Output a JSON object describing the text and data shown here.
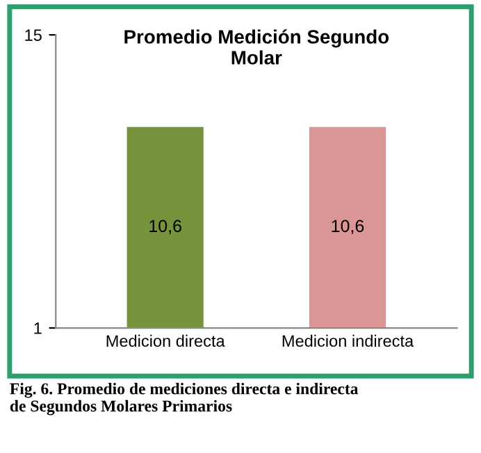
{
  "chart_data": {
    "type": "bar",
    "title": "Promedio Medición Segundo\nMolar",
    "categories": [
      "Medicion directa",
      "Medicion indirecta"
    ],
    "values": [
      10.6,
      10.6
    ],
    "colors": [
      "#77933c",
      "#d99694"
    ],
    "value_labels": [
      "10,6",
      "10,6"
    ],
    "ylim": [
      1,
      15
    ],
    "yticks": [
      1,
      15
    ],
    "grid": false,
    "legend": false,
    "annotations": [
      "Fig. 6. Promedio de mediciones directa e indirecta\nde Segundos Molares Primarios"
    ]
  }
}
